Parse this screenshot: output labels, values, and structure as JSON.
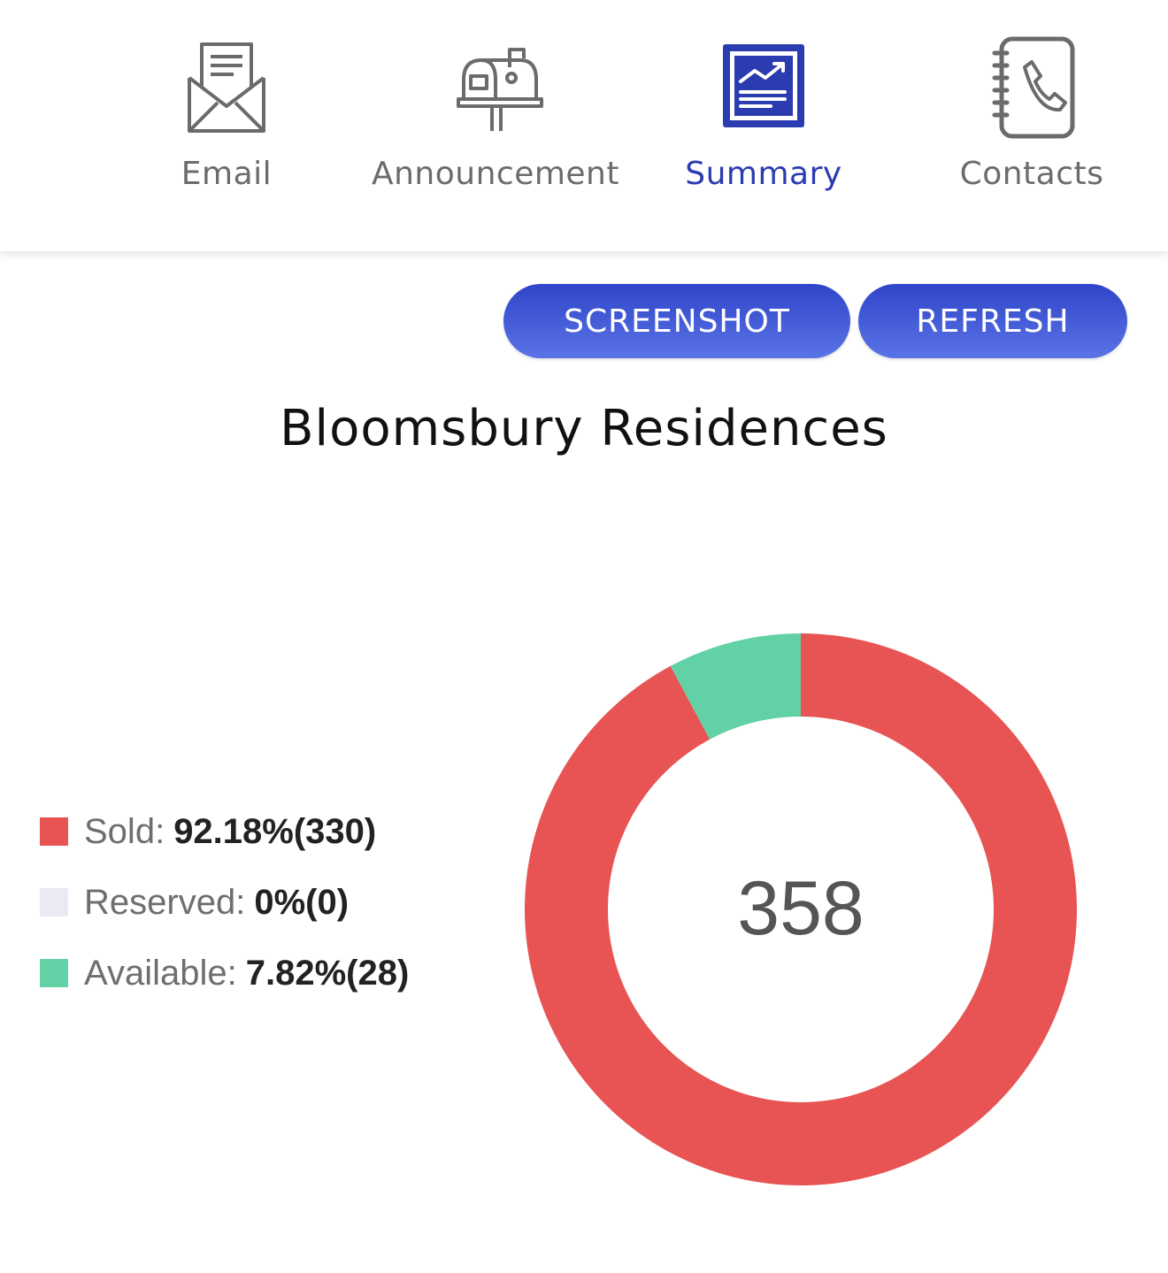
{
  "nav": {
    "items": [
      {
        "label": "Email",
        "icon": "envelope-icon",
        "active": false
      },
      {
        "label": "Announcement",
        "icon": "mailbox-icon",
        "active": false
      },
      {
        "label": "Summary",
        "icon": "chart-report-icon",
        "active": true
      },
      {
        "label": "Contacts",
        "icon": "phone-book-icon",
        "active": false
      }
    ]
  },
  "toolbar": {
    "screenshot_label": "SCREENSHOT",
    "refresh_label": "REFRESH"
  },
  "colors": {
    "accent": "#2b3bb0",
    "button": "#3a4fd3",
    "sold": "#e85353",
    "reserved": "#e9eaf4",
    "available": "#63d1a6"
  },
  "chart_data": {
    "type": "pie",
    "title": "Bloomsbury Residences",
    "donut": true,
    "total": "358",
    "legend_position": "left",
    "series": [
      {
        "name": "Sold",
        "value": 330,
        "percent_label": "92.18%(330)",
        "color": "#e85353"
      },
      {
        "name": "Reserved",
        "value": 0,
        "percent_label": "0%(0)",
        "color": "#e9eaf4"
      },
      {
        "name": "Available",
        "value": 28,
        "percent_label": "7.82%(28)",
        "color": "#63d1a6"
      }
    ]
  }
}
